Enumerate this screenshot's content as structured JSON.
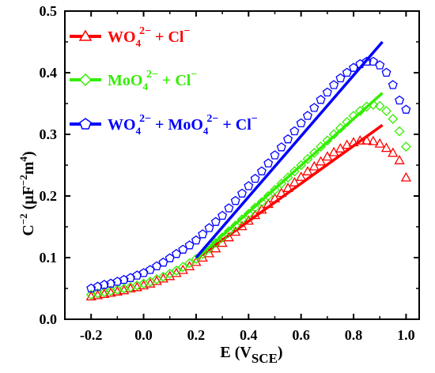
{
  "chart_data": {
    "type": "scatter",
    "xlabel": {
      "base": "E (V",
      "sub": "SCE",
      "end": ")"
    },
    "ylabel": {
      "base": "C",
      "sup1": "−2",
      "mid": " (μF",
      "sup2": "−2",
      "mid2": "m",
      "sup3": "4",
      "end": ")"
    },
    "xlim": [
      -0.3,
      1.05
    ],
    "ylim": [
      0.0,
      0.5
    ],
    "xticks": [
      "-0.2",
      "0.0",
      "0.2",
      "0.4",
      "0.6",
      "0.8",
      "1.0"
    ],
    "yticks": [
      "0.0",
      "0.1",
      "0.2",
      "0.3",
      "0.4",
      "0.5"
    ],
    "legend_position": "top-left",
    "series": [
      {
        "name": "WO4(2−) + Cl−",
        "legend_parts": {
          "a": "WO",
          "s1": "4",
          "s2": "2−",
          "b": " + Cl",
          "s3": "−"
        },
        "color": "#ff0000",
        "marker": "triangle",
        "x": [
          -0.2,
          -0.175,
          -0.15,
          -0.125,
          -0.1,
          -0.075,
          -0.05,
          -0.025,
          0.0,
          0.025,
          0.05,
          0.075,
          0.1,
          0.125,
          0.15,
          0.175,
          0.2,
          0.225,
          0.25,
          0.275,
          0.3,
          0.325,
          0.35,
          0.375,
          0.4,
          0.425,
          0.45,
          0.475,
          0.5,
          0.525,
          0.55,
          0.575,
          0.6,
          0.625,
          0.65,
          0.675,
          0.7,
          0.725,
          0.75,
          0.775,
          0.8,
          0.825,
          0.85,
          0.875,
          0.9,
          0.925,
          0.95,
          0.975,
          1.0
        ],
        "y": [
          0.037,
          0.039,
          0.041,
          0.043,
          0.045,
          0.047,
          0.05,
          0.052,
          0.055,
          0.058,
          0.062,
          0.066,
          0.07,
          0.075,
          0.08,
          0.086,
          0.093,
          0.1,
          0.107,
          0.115,
          0.124,
          0.133,
          0.142,
          0.151,
          0.16,
          0.169,
          0.178,
          0.187,
          0.196,
          0.205,
          0.213,
          0.222,
          0.231,
          0.24,
          0.248,
          0.256,
          0.264,
          0.271,
          0.277,
          0.283,
          0.287,
          0.29,
          0.29,
          0.289,
          0.285,
          0.278,
          0.27,
          0.258,
          0.23
        ],
        "fit": {
          "x": [
            0.2,
            0.91
          ],
          "y": [
            0.098,
            0.315
          ]
        }
      },
      {
        "name": "MoO4(2−) + Cl−",
        "legend_parts": {
          "a": "MoO",
          "s1": "4",
          "s2": "2−",
          "b": " + Cl",
          "s3": "−"
        },
        "color": "#33ee00",
        "marker": "diamond",
        "x": [
          -0.2,
          -0.175,
          -0.15,
          -0.125,
          -0.1,
          -0.075,
          -0.05,
          -0.025,
          0.0,
          0.025,
          0.05,
          0.075,
          0.1,
          0.125,
          0.15,
          0.175,
          0.2,
          0.225,
          0.25,
          0.275,
          0.3,
          0.325,
          0.35,
          0.375,
          0.4,
          0.425,
          0.45,
          0.475,
          0.5,
          0.525,
          0.55,
          0.575,
          0.6,
          0.625,
          0.65,
          0.675,
          0.7,
          0.725,
          0.75,
          0.775,
          0.8,
          0.825,
          0.85,
          0.875,
          0.9,
          0.925,
          0.95,
          0.975,
          1.0
        ],
        "y": [
          0.04,
          0.042,
          0.044,
          0.046,
          0.048,
          0.05,
          0.052,
          0.055,
          0.058,
          0.061,
          0.065,
          0.069,
          0.074,
          0.079,
          0.085,
          0.091,
          0.098,
          0.106,
          0.115,
          0.124,
          0.133,
          0.143,
          0.152,
          0.162,
          0.171,
          0.181,
          0.19,
          0.2,
          0.21,
          0.22,
          0.23,
          0.24,
          0.25,
          0.26,
          0.27,
          0.28,
          0.29,
          0.3,
          0.31,
          0.32,
          0.33,
          0.338,
          0.345,
          0.348,
          0.346,
          0.338,
          0.325,
          0.305,
          0.28
        ],
        "fit": {
          "x": [
            0.2,
            0.91
          ],
          "y": [
            0.098,
            0.367
          ]
        }
      },
      {
        "name": "WO4(2−) + MoO4(2−) + Cl−",
        "legend_parts": {
          "a": "WO",
          "s1": "4",
          "s2": "2−",
          "b": " + MoO",
          "s4": "4",
          "s5": "2−",
          "c": " + Cl",
          "s3": "−"
        },
        "color": "#0000ff",
        "marker": "pentagon",
        "x": [
          -0.2,
          -0.175,
          -0.15,
          -0.125,
          -0.1,
          -0.075,
          -0.05,
          -0.025,
          0.0,
          0.025,
          0.05,
          0.075,
          0.1,
          0.125,
          0.15,
          0.175,
          0.2,
          0.225,
          0.25,
          0.275,
          0.3,
          0.325,
          0.35,
          0.375,
          0.4,
          0.425,
          0.45,
          0.475,
          0.5,
          0.525,
          0.55,
          0.575,
          0.6,
          0.625,
          0.65,
          0.675,
          0.7,
          0.725,
          0.75,
          0.775,
          0.8,
          0.825,
          0.85,
          0.875,
          0.9,
          0.925,
          0.95,
          0.975,
          1.0
        ],
        "y": [
          0.05,
          0.053,
          0.056,
          0.058,
          0.061,
          0.064,
          0.067,
          0.071,
          0.075,
          0.08,
          0.086,
          0.092,
          0.099,
          0.106,
          0.113,
          0.12,
          0.128,
          0.138,
          0.148,
          0.158,
          0.168,
          0.18,
          0.192,
          0.204,
          0.216,
          0.228,
          0.24,
          0.253,
          0.266,
          0.279,
          0.292,
          0.305,
          0.318,
          0.33,
          0.343,
          0.356,
          0.368,
          0.38,
          0.391,
          0.4,
          0.408,
          0.414,
          0.418,
          0.418,
          0.412,
          0.4,
          0.38,
          0.355,
          0.34
        ],
        "fit": {
          "x": [
            0.2,
            0.91
          ],
          "y": [
            0.1,
            0.45
          ]
        }
      }
    ]
  }
}
